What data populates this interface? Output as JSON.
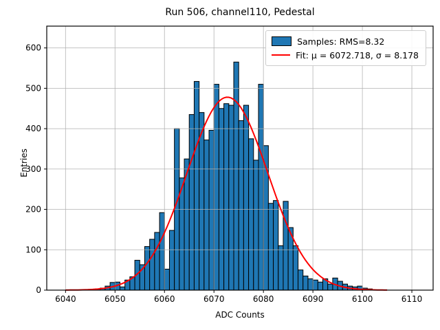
{
  "title": "Run 506, channel110, Pedestal",
  "axes": {
    "xlabel": "ADC Counts",
    "ylabel": "Entries"
  },
  "legend": {
    "samples_label": "Samples: RMS=8.32",
    "fit_label": "Fit: μ = 6072.718, σ = 8.178"
  },
  "colors": {
    "bar_fill": "#1f77b4",
    "bar_edge": "#000000",
    "fit_line": "#ff0000",
    "grid": "#b0b0b0",
    "spine": "#000000",
    "background": "#ffffff"
  },
  "chart_data": {
    "type": "bar",
    "subtype": "histogram",
    "title": "Run 506, channel110, Pedestal",
    "xlabel": "ADC Counts",
    "ylabel": "Entries",
    "xlim": [
      6036.2,
      6114.3
    ],
    "ylim": [
      0,
      654
    ],
    "xticks": [
      6040,
      6050,
      6060,
      6070,
      6080,
      6090,
      6100,
      6110
    ],
    "yticks": [
      0,
      100,
      200,
      300,
      400,
      500,
      600
    ],
    "grid": true,
    "bin_start": 6046,
    "bin_width": 1,
    "counts": [
      3,
      5,
      10,
      19,
      20,
      8,
      25,
      33,
      74,
      63,
      108,
      126,
      143,
      192,
      52,
      148,
      400,
      278,
      325,
      435,
      517,
      440,
      372,
      396,
      510,
      450,
      462,
      458,
      565,
      420,
      458,
      375,
      322,
      510,
      358,
      215,
      222,
      110,
      220,
      155,
      110,
      50,
      35,
      28,
      25,
      20,
      28,
      15,
      30,
      22,
      15,
      10,
      8,
      10,
      5,
      3
    ],
    "series_label": "Samples: RMS=8.32",
    "rms": 8.32,
    "fit": {
      "type": "gaussian",
      "label": "Fit: μ = 6072.718, σ = 8.178",
      "amplitude": 478,
      "mu": 6072.718,
      "sigma": 8.178,
      "x_min": 6040,
      "x_max": 6105
    },
    "legend_position": "upper right"
  }
}
